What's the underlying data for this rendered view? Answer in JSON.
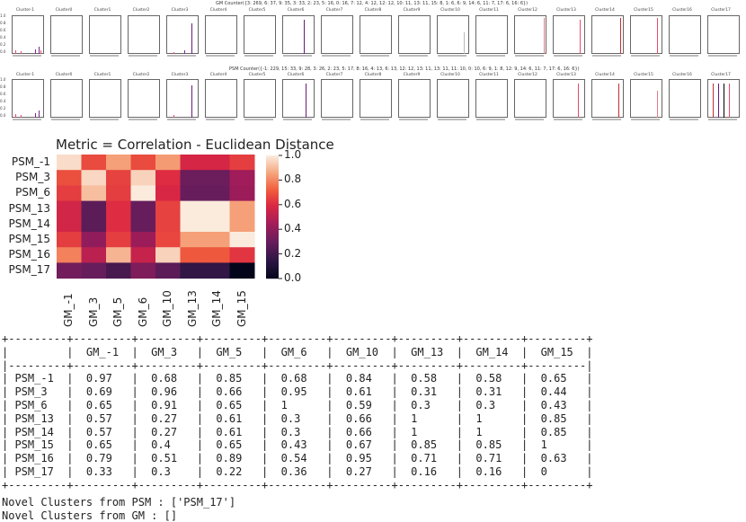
{
  "small_multiples": {
    "gm_title": "GM Counter({3: 269, 6: 37, 9: 35, 3: 33, 2: 23, 5: 16, 0: 16, 7: 12, 4: 12, 12: 12, 10: 11, 13: 11, 15: 8, 1: 6, 6: 9, 14: 6, 11: 7, 17: 6, 16: 6})",
    "psm_title": "PSM Counter({-1: 229, 15: 33, 9: 28, 3: 26, 2: 23, 5: 17, 8: 16, 4: 13, 6: 13, 12: 12, 13: 11, 13: 11, 11: 10, 0: 10, 6: 9, 1: 8, 12: 9, 14: 6, 11: 7, 17: 6, 16: 6})",
    "gm_clusters": [
      "Cluster-1",
      "Cluster0",
      "Cluster1",
      "Cluster2",
      "Cluster3",
      "Cluster4",
      "Cluster5",
      "Cluster6",
      "Cluster7",
      "Cluster8",
      "Cluster9",
      "Cluster10",
      "Cluster11",
      "Cluster12",
      "Cluster13",
      "Cluster14",
      "Cluster15",
      "Cluster16",
      "Cluster17"
    ],
    "psm_clusters": [
      "Cluster-1",
      "Cluster0",
      "Cluster1",
      "Cluster2",
      "Cluster3",
      "Cluster4",
      "Cluster5",
      "Cluster6",
      "Cluster7",
      "Cluster8",
      "Cluster9",
      "Cluster10",
      "Cluster11",
      "Cluster12",
      "Cluster13",
      "Cluster14",
      "Cluster15",
      "Cluster16",
      "Cluster17"
    ],
    "yticks": [
      "1.0",
      "0.8",
      "0.6",
      "0.4",
      "0.2",
      "0.0"
    ]
  },
  "chart_data": {
    "type": "heatmap",
    "title": "Metric = Correlation - Euclidean Distance",
    "rows": [
      "PSM_-1",
      "PSM_3",
      "PSM_6",
      "PSM_13",
      "PSM_14",
      "PSM_15",
      "PSM_16",
      "PSM_17"
    ],
    "columns": [
      "GM_-1",
      "GM_3",
      "GM_5",
      "GM_6",
      "GM_10",
      "GM_13",
      "GM_14",
      "GM_15"
    ],
    "values": [
      [
        0.97,
        0.68,
        0.85,
        0.68,
        0.84,
        0.58,
        0.58,
        0.65
      ],
      [
        0.69,
        0.96,
        0.66,
        0.95,
        0.61,
        0.31,
        0.31,
        0.44
      ],
      [
        0.65,
        0.91,
        0.65,
        1,
        0.59,
        0.3,
        0.3,
        0.43
      ],
      [
        0.57,
        0.27,
        0.61,
        0.3,
        0.66,
        1,
        1,
        0.85
      ],
      [
        0.57,
        0.27,
        0.61,
        0.3,
        0.66,
        1,
        1,
        0.85
      ],
      [
        0.65,
        0.4,
        0.65,
        0.43,
        0.67,
        0.85,
        0.85,
        1
      ],
      [
        0.79,
        0.51,
        0.89,
        0.54,
        0.95,
        0.71,
        0.71,
        0.63
      ],
      [
        0.33,
        0.3,
        0.22,
        0.36,
        0.27,
        0.16,
        0.16,
        0
      ]
    ],
    "colorbar_ticks": [
      "1.0",
      "0.8",
      "0.6",
      "0.4",
      "0.2",
      "0.0"
    ],
    "vmin": 0,
    "vmax": 1
  },
  "table": {
    "text": "+---------+---------+---------+---------+---------+---------+---------+---------+---------+\n|         |  GM_-1  |  GM_3   |  GM_5   |  GM_6   |  GM_10  |  GM_13  |  GM_14  |  GM_15  |\n|---------+---------+---------+---------+---------+---------+---------+---------+---------|\n| PSM_-1  |  0.97   |  0.68   |  0.85   |  0.68   |  0.84   |  0.58   |  0.58   |  0.65   |\n| PSM_3   |  0.69   |  0.96   |  0.66   |  0.95   |  0.61   |  0.31   |  0.31   |  0.44   |\n| PSM_6   |  0.65   |  0.91   |  0.65   |  1      |  0.59   |  0.3    |  0.3    |  0.43   |\n| PSM_13  |  0.57   |  0.27   |  0.61   |  0.3    |  0.66   |  1      |  1      |  0.85   |\n| PSM_14  |  0.57   |  0.27   |  0.61   |  0.3    |  0.66   |  1      |  1      |  0.85   |\n| PSM_15  |  0.65   |  0.4    |  0.65   |  0.43   |  0.67   |  0.85   |  0.85   |  1      |\n| PSM_16  |  0.79   |  0.51   |  0.89   |  0.54   |  0.95   |  0.71   |  0.71   |  0.63   |\n| PSM_17  |  0.33   |  0.3    |  0.22   |  0.36   |  0.27   |  0.16   |  0.16   |  0      |\n+---------+---------+---------+---------+---------+---------+---------+---------+---------+"
  },
  "notes": {
    "psm": "Novel Clusters from PSM : ['PSM_17']",
    "gm": "Novel Clusters from GM : []"
  }
}
